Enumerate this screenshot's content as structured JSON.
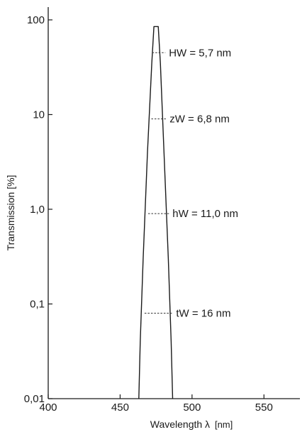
{
  "chart_data": {
    "type": "line",
    "title": "",
    "xlabel": "Wavelength λ",
    "xlabel_unit": "[nm]",
    "ylabel": "Transmission [%]",
    "x_scale": "linear",
    "y_scale": "log",
    "xlim": [
      400,
      575
    ],
    "ylim": [
      0.01,
      100
    ],
    "x_ticks": [
      400,
      450,
      500,
      550
    ],
    "x_tick_labels": [
      "400",
      "450",
      "500",
      "550"
    ],
    "y_ticks": [
      0.01,
      0.1,
      1,
      10,
      100
    ],
    "y_tick_labels": [
      "0,01",
      "0,1",
      "1,0",
      "10",
      "100"
    ],
    "grid": false,
    "legend": "none",
    "series": [
      {
        "x": [
          463,
          464,
          466,
          469,
          472,
          473.5,
          476.5,
          478,
          480.5,
          483.5,
          485.5,
          486.5
        ],
        "y": [
          0.01,
          0.04,
          0.3,
          4,
          35,
          85,
          85,
          35,
          4,
          0.3,
          0.04,
          0.01
        ]
      }
    ],
    "annotations": [
      {
        "label": "HW  =  5,7 nm",
        "y": 45,
        "x_left": 472.3,
        "x_right": 478.0
      },
      {
        "label": "zW  =  6,8 nm",
        "y": 9,
        "x_left": 471.7,
        "x_right": 478.5
      },
      {
        "label": "hW  =  11,0 nm",
        "y": 0.9,
        "x_left": 469.5,
        "x_right": 480.5
      },
      {
        "label": "tW  =  16 nm",
        "y": 0.08,
        "x_left": 467.0,
        "x_right": 483.0
      }
    ]
  }
}
